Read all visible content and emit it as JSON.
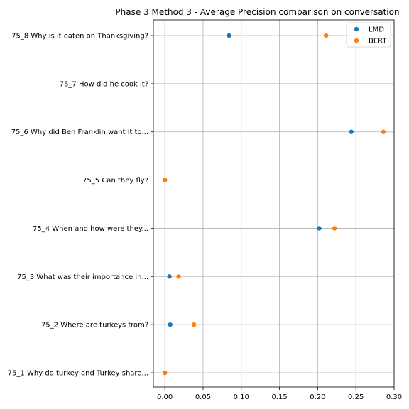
{
  "chart_data": {
    "type": "scatter",
    "title": "Phase 3 Method 3 - Average Precision comparison on conversation",
    "xlabel": "",
    "ylabel": "",
    "xlim": [
      -0.015,
      0.3
    ],
    "xticks": [
      0.0,
      0.05,
      0.1,
      0.15,
      0.2,
      0.25,
      0.3
    ],
    "xtick_labels": [
      "0.00",
      "0.05",
      "0.10",
      "0.15",
      "0.20",
      "0.25",
      "0.30"
    ],
    "categories": [
      "75_1 Why do turkey and Turkey share...",
      "75_2 Where are turkeys from?",
      "75_3 What was their importance in...",
      "75_4 When and how were they...",
      "75_5 Can they fly?",
      "75_6 Why did Ben Franklin want it to...",
      "75_7 How did he cook it?",
      "75_8 Why is it eaten on Thanksgiving?"
    ],
    "grid": true,
    "legend_position": "top-right",
    "series": [
      {
        "name": "LMD",
        "color": "#1f77b4",
        "values": [
          0.0,
          0.007,
          0.006,
          0.202,
          0.0,
          0.244,
          null,
          0.084
        ]
      },
      {
        "name": "BERT",
        "color": "#ff7f0e",
        "values": [
          0.0,
          0.038,
          0.018,
          0.222,
          0.0,
          0.286,
          null,
          0.211
        ]
      }
    ]
  }
}
